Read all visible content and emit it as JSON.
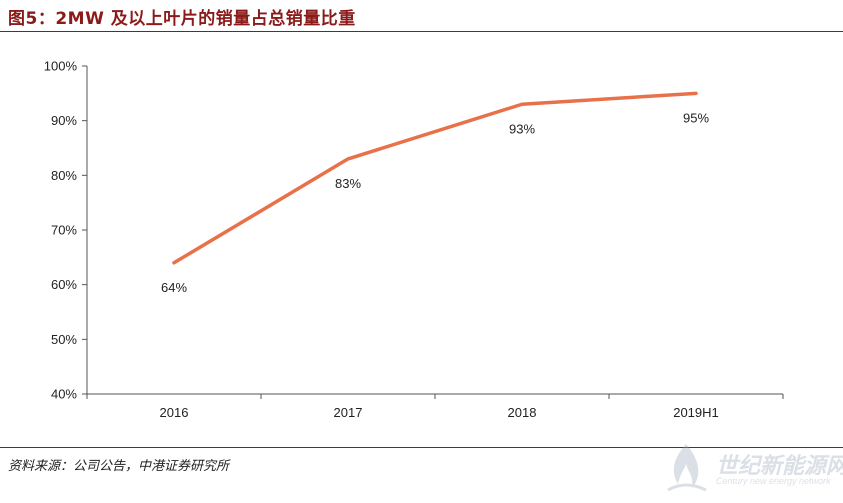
{
  "header": {
    "title": "图5：2MW 及以上叶片的销量占总销量比重"
  },
  "footer": {
    "source": "资料来源：公司公告，中港证券研究所"
  },
  "watermark": {
    "text": "世纪新能源网",
    "sub": "Century new energy network"
  },
  "colors": {
    "line": "#e8714a",
    "accent": "#8b1a1a",
    "axis": "#555555"
  },
  "chart_data": {
    "type": "line",
    "categories": [
      "2016",
      "2017",
      "2018",
      "2019H1"
    ],
    "series": [
      {
        "values": [
          64,
          83,
          93,
          95
        ],
        "labels": [
          "64%",
          "83%",
          "93%",
          "95%"
        ]
      }
    ],
    "ylim": [
      40,
      100
    ],
    "yticks": [
      "40%",
      "50%",
      "60%",
      "70%",
      "80%",
      "90%",
      "100%"
    ],
    "ytick_values": [
      40,
      50,
      60,
      70,
      80,
      90,
      100
    ],
    "grid": false,
    "legend": "none"
  }
}
